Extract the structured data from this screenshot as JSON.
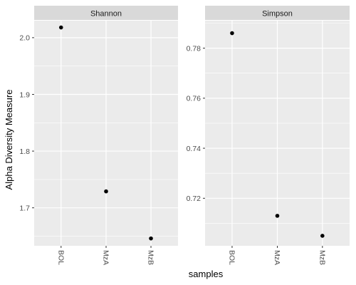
{
  "chart_data": {
    "type": "scatter",
    "xlabel": "samples",
    "ylabel": "Alpha Diversity Measure",
    "categories": [
      "BOL",
      "MzA",
      "MzB"
    ],
    "x_tick_rotation": "vertical",
    "grid": true,
    "legend": "none",
    "colors": {
      "panel_background": "#ebebeb",
      "strip_background": "#d9d9d9",
      "grid_line": "#ffffff",
      "point": "#000000"
    },
    "facets": [
      {
        "title": "Shannon",
        "values": [
          2.018,
          1.729,
          1.646
        ],
        "ylim": [
          1.633,
          2.03
        ],
        "y_ticks": [
          1.7,
          1.8,
          1.9,
          2.0
        ],
        "y_tick_labels": [
          "1.7",
          "1.8",
          "1.9",
          "2.0"
        ]
      },
      {
        "title": "Simpson",
        "values": [
          0.786,
          0.713,
          0.705
        ],
        "ylim": [
          0.701,
          0.791
        ],
        "y_ticks": [
          0.72,
          0.74,
          0.76,
          0.78
        ],
        "y_tick_labels": [
          "0.72",
          "0.74",
          "0.76",
          "0.78"
        ]
      }
    ]
  }
}
